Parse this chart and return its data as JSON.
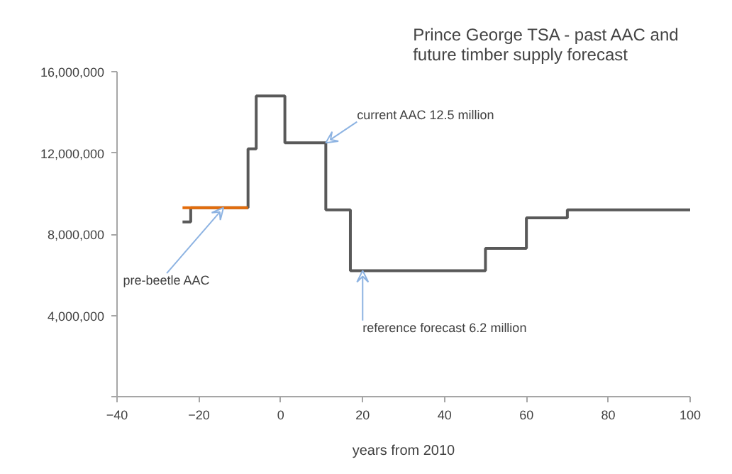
{
  "chart_data": {
    "type": "step",
    "title": "Prince George TSA  - past  AAC and future timber supply forecast",
    "xlabel": "years from 2010",
    "series": [
      {
        "color": "#595959",
        "x": [
          -24,
          -22,
          -8,
          -6,
          1,
          11,
          17,
          50,
          60,
          70,
          100
        ],
        "values": [
          8600000,
          9300000,
          12200000,
          14800000,
          12500000,
          9200000,
          6200000,
          7300000,
          8800000,
          9200000,
          9200000
        ]
      },
      {
        "type": "line",
        "color": "#e46c0a",
        "x": [
          -24,
          -8
        ],
        "values": [
          9300000,
          9300000
        ]
      }
    ],
    "xlim": [
      -40,
      100
    ],
    "xticks": [
      -40,
      -20,
      0,
      20,
      40,
      60,
      80,
      100
    ],
    "ylim": [
      0,
      16000000
    ],
    "yticks": [
      {
        "value": 0,
        "label": null
      },
      {
        "value": 4000000,
        "label": "4,000,000"
      },
      {
        "value": 8000000,
        "label": "8,000,000"
      },
      {
        "value": 12000000,
        "label": "12,000,000"
      },
      {
        "value": 16000000,
        "label": "16,000,000"
      }
    ],
    "annotations": [
      {
        "text": "current AAC 12.5 million",
        "x": 11,
        "y": 12500000
      },
      {
        "text": "reference forecast 6.2 million",
        "x": 20,
        "y": 6200000
      },
      {
        "text": "pre-beetle AAC",
        "x": -14,
        "y": 9300000
      }
    ],
    "grid": false
  }
}
